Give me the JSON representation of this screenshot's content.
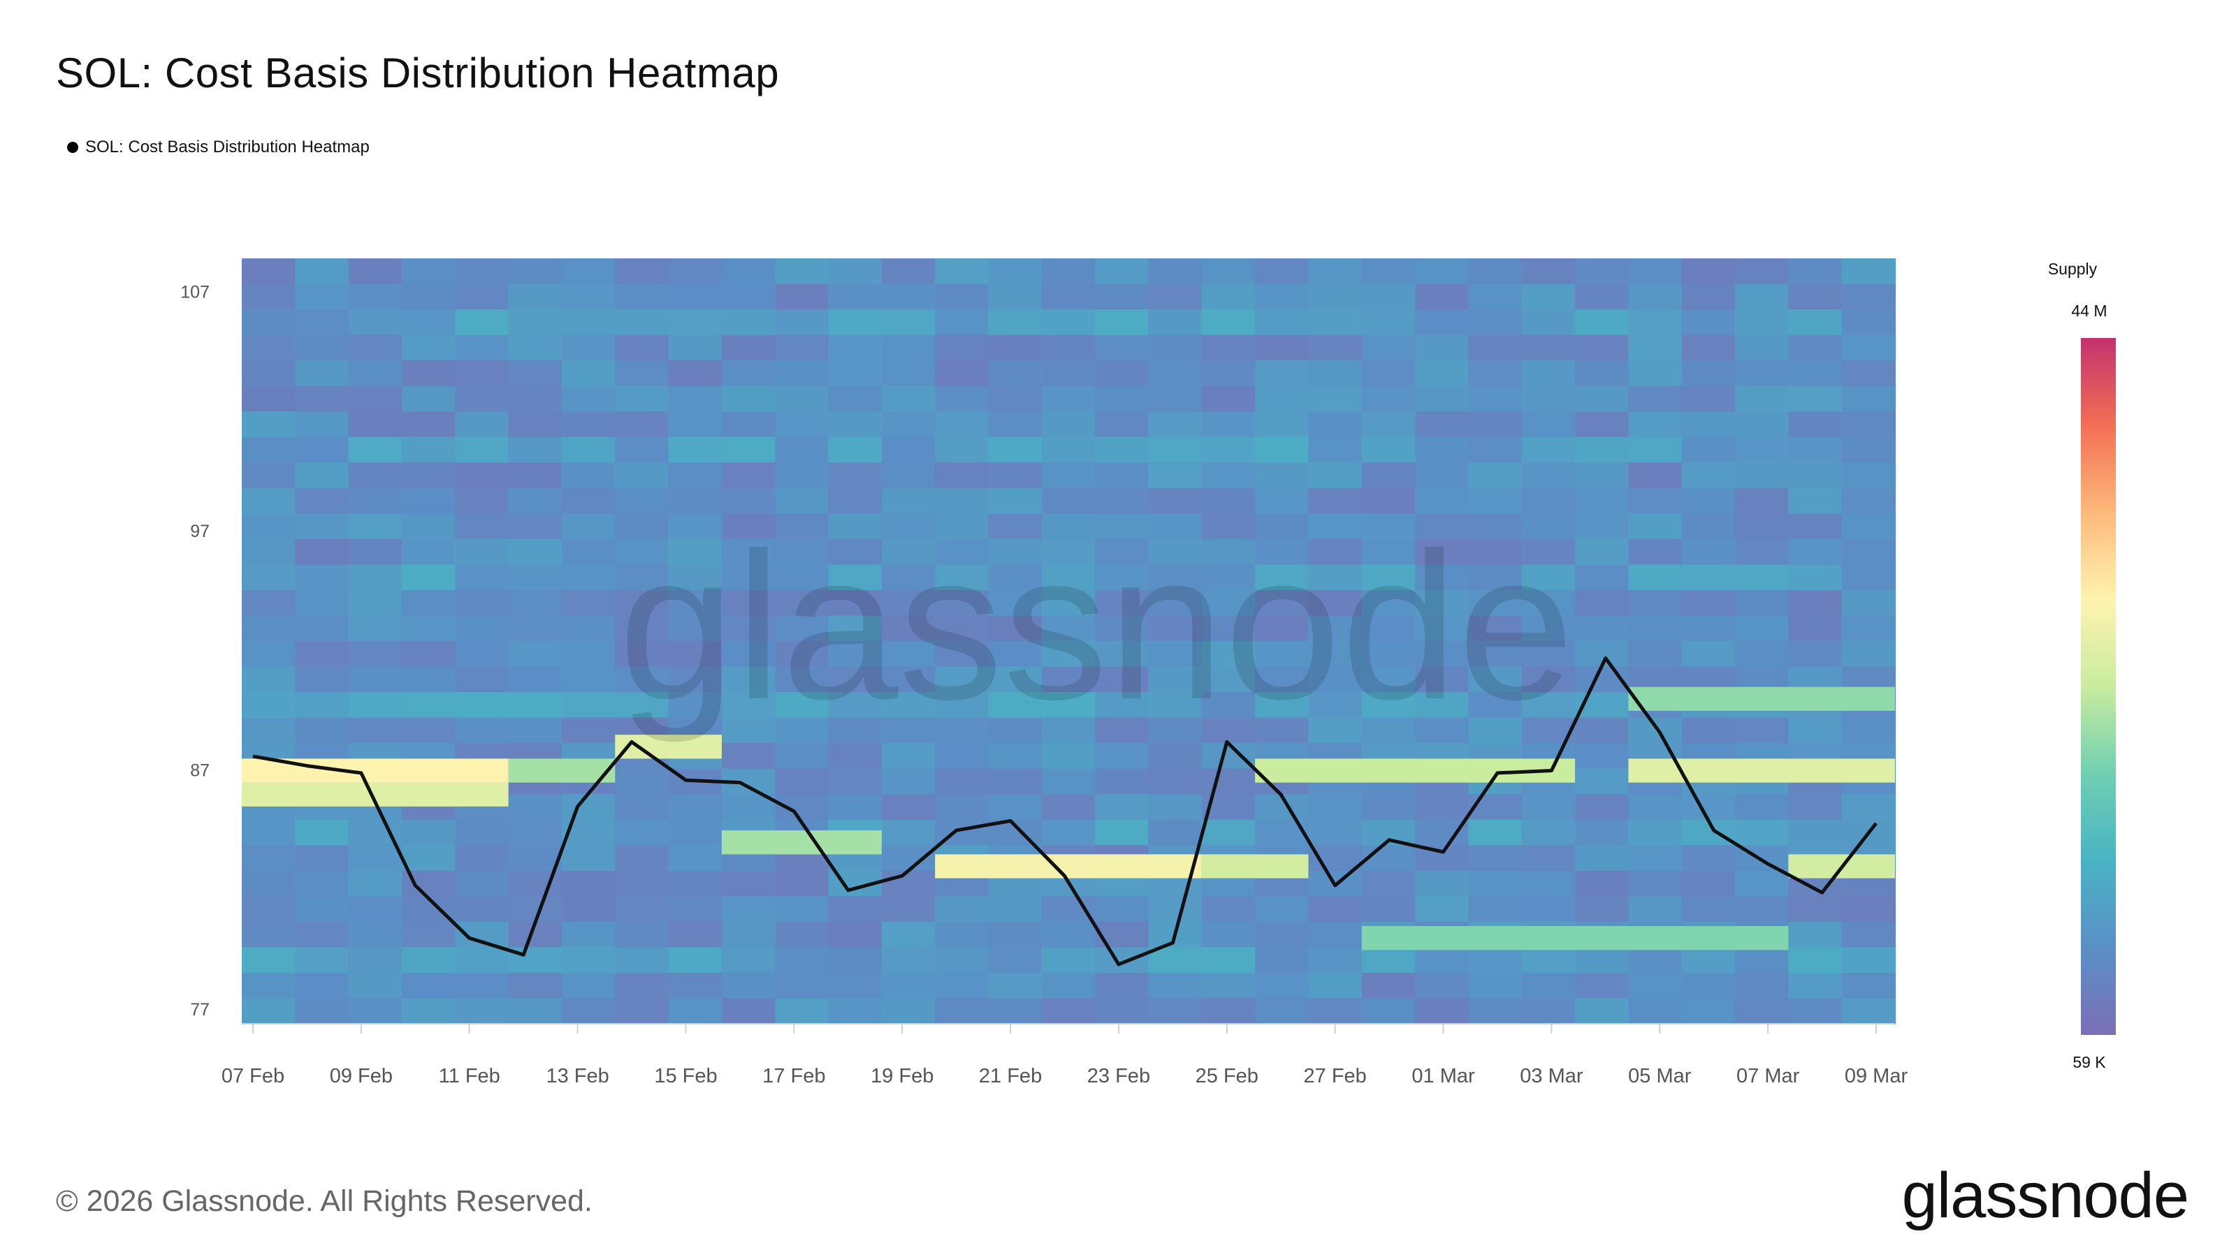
{
  "title": "SOL: Cost Basis Distribution Heatmap",
  "legend_label": "SOL: Cost Basis Distribution Heatmap",
  "watermark": "glassnode",
  "color_scale": {
    "title": "Supply",
    "max_label": "44 M",
    "min_label": "59 K",
    "stops": [
      "#7b6fb6",
      "#5a8fc6",
      "#4ab3c4",
      "#6fcfb2",
      "#c9ec9e",
      "#fff3b0",
      "#fdb97a",
      "#f36e55",
      "#c4326e"
    ]
  },
  "footer": {
    "copyright": "© 2026 Glassnode. All Rights Reserved.",
    "brand": "glassnode"
  },
  "chart_data": {
    "type": "heatmap",
    "title": "SOL: Cost Basis Distribution Heatmap",
    "ylim": [
      77,
      109
    ],
    "y_ticks": [
      77,
      87,
      97,
      107
    ],
    "x_ticks": [
      "07 Feb",
      "09 Feb",
      "11 Feb",
      "13 Feb",
      "15 Feb",
      "17 Feb",
      "19 Feb",
      "21 Feb",
      "23 Feb",
      "25 Feb",
      "27 Feb",
      "01 Mar",
      "03 Mar",
      "05 Mar",
      "07 Mar",
      "09 Mar"
    ],
    "dates": [
      "07 Feb",
      "08 Feb",
      "09 Feb",
      "10 Feb",
      "11 Feb",
      "12 Feb",
      "13 Feb",
      "14 Feb",
      "15 Feb",
      "16 Feb",
      "17 Feb",
      "18 Feb",
      "19 Feb",
      "20 Feb",
      "21 Feb",
      "22 Feb",
      "23 Feb",
      "24 Feb",
      "25 Feb",
      "26 Feb",
      "27 Feb",
      "28 Feb",
      "01 Mar",
      "02 Mar",
      "03 Mar",
      "04 Mar",
      "05 Mar",
      "06 Mar",
      "07 Mar",
      "08 Mar",
      "09 Mar"
    ],
    "price_series": {
      "values": [
        87.6,
        87.2,
        86.9,
        82.2,
        80.0,
        79.3,
        85.5,
        88.2,
        86.6,
        86.5,
        85.3,
        82.0,
        82.6,
        84.5,
        84.9,
        82.6,
        78.9,
        79.8,
        88.2,
        86.0,
        82.2,
        84.1,
        83.6,
        86.9,
        87.0,
        91.7,
        88.6,
        84.5,
        83.1,
        81.9,
        84.8
      ]
    },
    "heat_bins": {
      "price_step": 1,
      "bins": [
        {
          "price": 86,
          "start": "07 Feb",
          "end": "11 Feb",
          "level": 0.55
        },
        {
          "price": 87,
          "start": "07 Feb",
          "end": "11 Feb",
          "level": 0.62
        },
        {
          "price": 87,
          "start": "12 Feb",
          "end": "13 Feb",
          "level": 0.45
        },
        {
          "price": 88,
          "start": "14 Feb",
          "end": "15 Feb",
          "level": 0.55
        },
        {
          "price": 84,
          "start": "16 Feb",
          "end": "18 Feb",
          "level": 0.45
        },
        {
          "price": 83,
          "start": "20 Feb",
          "end": "24 Feb",
          "level": 0.6
        },
        {
          "price": 83,
          "start": "25 Feb",
          "end": "26 Feb",
          "level": 0.52
        },
        {
          "price": 87,
          "start": "26 Feb",
          "end": "03 Mar",
          "level": 0.5
        },
        {
          "price": 87,
          "start": "05 Mar",
          "end": "09 Mar",
          "level": 0.55
        },
        {
          "price": 90,
          "start": "05 Mar",
          "end": "09 Mar",
          "level": 0.42
        },
        {
          "price": 80,
          "start": "28 Feb",
          "end": "07 Mar",
          "level": 0.4
        },
        {
          "price": 83,
          "start": "08 Mar",
          "end": "09 Mar",
          "level": 0.52
        }
      ]
    },
    "grid": false,
    "legend": "top-left"
  }
}
